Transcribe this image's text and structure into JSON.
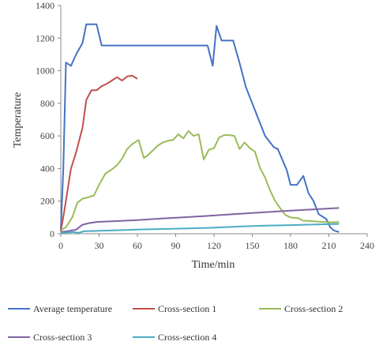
{
  "chart_data": {
    "type": "line",
    "xlabel": "Time/min",
    "ylabel": "Temperature",
    "xlim": [
      0,
      240
    ],
    "ylim": [
      0,
      1400
    ],
    "xticks": [
      0,
      30,
      60,
      90,
      120,
      150,
      180,
      210,
      240
    ],
    "yticks": [
      0,
      200,
      400,
      600,
      800,
      1000,
      1200,
      1400
    ],
    "grid": false,
    "legend_position": "bottom",
    "series": [
      {
        "name": "Average temperature",
        "color": "#4472C4",
        "points": [
          [
            0,
            20
          ],
          [
            2,
            400
          ],
          [
            4,
            1050
          ],
          [
            8,
            1030
          ],
          [
            12,
            1100
          ],
          [
            17,
            1170
          ],
          [
            20,
            1285
          ],
          [
            28,
            1285
          ],
          [
            32,
            1155
          ],
          [
            60,
            1155
          ],
          [
            90,
            1155
          ],
          [
            115,
            1155
          ],
          [
            119,
            1030
          ],
          [
            122,
            1275
          ],
          [
            126,
            1185
          ],
          [
            135,
            1185
          ],
          [
            140,
            1050
          ],
          [
            145,
            900
          ],
          [
            150,
            800
          ],
          [
            156,
            680
          ],
          [
            160,
            600
          ],
          [
            167,
            530
          ],
          [
            170,
            520
          ],
          [
            177,
            390
          ],
          [
            180,
            300
          ],
          [
            185,
            300
          ],
          [
            190,
            355
          ],
          [
            194,
            250
          ],
          [
            198,
            200
          ],
          [
            202,
            120
          ],
          [
            208,
            90
          ],
          [
            211,
            40
          ],
          [
            214,
            20
          ],
          [
            218,
            10
          ]
        ]
      },
      {
        "name": "Cross-section 1",
        "color": "#C0504D",
        "points": [
          [
            0,
            15
          ],
          [
            3,
            150
          ],
          [
            8,
            400
          ],
          [
            12,
            500
          ],
          [
            17,
            650
          ],
          [
            20,
            820
          ],
          [
            24,
            880
          ],
          [
            28,
            880
          ],
          [
            32,
            905
          ],
          [
            36,
            920
          ],
          [
            40,
            940
          ],
          [
            44,
            960
          ],
          [
            48,
            940
          ],
          [
            52,
            965
          ],
          [
            56,
            970
          ],
          [
            60,
            950
          ]
        ]
      },
      {
        "name": "Cross-section 2",
        "color": "#9BBB59",
        "points": [
          [
            0,
            20
          ],
          [
            4,
            40
          ],
          [
            9,
            100
          ],
          [
            13,
            190
          ],
          [
            17,
            215
          ],
          [
            22,
            225
          ],
          [
            26,
            235
          ],
          [
            30,
            300
          ],
          [
            35,
            370
          ],
          [
            40,
            395
          ],
          [
            44,
            420
          ],
          [
            48,
            460
          ],
          [
            52,
            520
          ],
          [
            56,
            550
          ],
          [
            61,
            575
          ],
          [
            65,
            465
          ],
          [
            68,
            480
          ],
          [
            72,
            510
          ],
          [
            76,
            540
          ],
          [
            80,
            560
          ],
          [
            84,
            570
          ],
          [
            88,
            575
          ],
          [
            92,
            610
          ],
          [
            96,
            585
          ],
          [
            100,
            630
          ],
          [
            104,
            600
          ],
          [
            108,
            610
          ],
          [
            112,
            455
          ],
          [
            116,
            515
          ],
          [
            120,
            525
          ],
          [
            124,
            590
          ],
          [
            128,
            605
          ],
          [
            132,
            605
          ],
          [
            136,
            600
          ],
          [
            140,
            520
          ],
          [
            144,
            560
          ],
          [
            148,
            525
          ],
          [
            152,
            505
          ],
          [
            156,
            405
          ],
          [
            160,
            345
          ],
          [
            164,
            265
          ],
          [
            168,
            200
          ],
          [
            172,
            155
          ],
          [
            176,
            115
          ],
          [
            180,
            100
          ],
          [
            186,
            95
          ],
          [
            190,
            80
          ],
          [
            196,
            78
          ],
          [
            200,
            75
          ],
          [
            206,
            72
          ],
          [
            212,
            70
          ],
          [
            218,
            72
          ]
        ]
      },
      {
        "name": "Cross-section 3",
        "color": "#8064A2",
        "points": [
          [
            0,
            10
          ],
          [
            5,
            15
          ],
          [
            12,
            25
          ],
          [
            17,
            55
          ],
          [
            22,
            65
          ],
          [
            28,
            72
          ],
          [
            40,
            76
          ],
          [
            60,
            84
          ],
          [
            80,
            94
          ],
          [
            100,
            102
          ],
          [
            120,
            112
          ],
          [
            140,
            122
          ],
          [
            160,
            132
          ],
          [
            180,
            142
          ],
          [
            200,
            150
          ],
          [
            218,
            158
          ]
        ]
      },
      {
        "name": "Cross-section 4",
        "color": "#4BACC6",
        "points": [
          [
            0,
            5
          ],
          [
            10,
            10
          ],
          [
            14,
            5
          ],
          [
            18,
            15
          ],
          [
            30,
            18
          ],
          [
            40,
            20
          ],
          [
            60,
            25
          ],
          [
            80,
            29
          ],
          [
            100,
            33
          ],
          [
            120,
            37
          ],
          [
            140,
            44
          ],
          [
            160,
            50
          ],
          [
            180,
            53
          ],
          [
            200,
            57
          ],
          [
            218,
            60
          ]
        ]
      }
    ]
  }
}
